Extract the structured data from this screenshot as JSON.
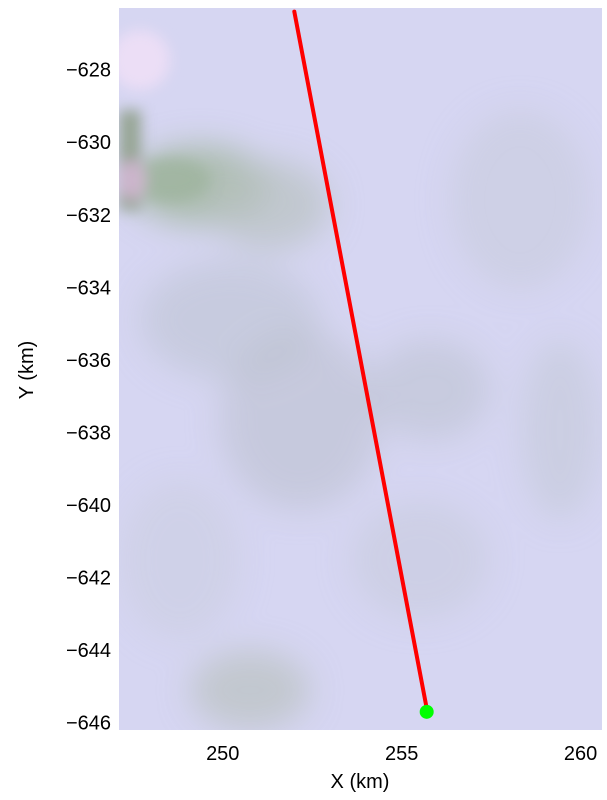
{
  "chart_data": {
    "type": "scatter",
    "title": "",
    "xlabel": "X (km)",
    "ylabel": "Y (km)",
    "xlim": [
      247.1,
      260.6
    ],
    "ylim": [
      -646.2,
      -626.3
    ],
    "grid": false,
    "x_ticks": [
      250,
      255,
      260
    ],
    "x_tick_labels": [
      "250",
      "255",
      "260"
    ],
    "y_ticks": [
      -628,
      -630,
      -632,
      -634,
      -636,
      -638,
      -640,
      -642,
      -644,
      -646
    ],
    "y_tick_labels": [
      "−628",
      "−630",
      "−632",
      "−634",
      "−636",
      "−638",
      "−640",
      "−642",
      "−644",
      "−646"
    ],
    "series": [
      {
        "style": "line",
        "color": "#ff0000",
        "x": [
          252.0,
          255.7
        ],
        "y": [
          -626.4,
          -645.6
        ]
      },
      {
        "style": "marker",
        "color": "#00ff00",
        "x": [
          255.7
        ],
        "y": [
          -645.7
        ]
      }
    ],
    "background": {
      "base_color": "#d6d6f2",
      "accent_colors": [
        "#aebcae",
        "#f0dff6",
        "#b4becb"
      ]
    }
  }
}
